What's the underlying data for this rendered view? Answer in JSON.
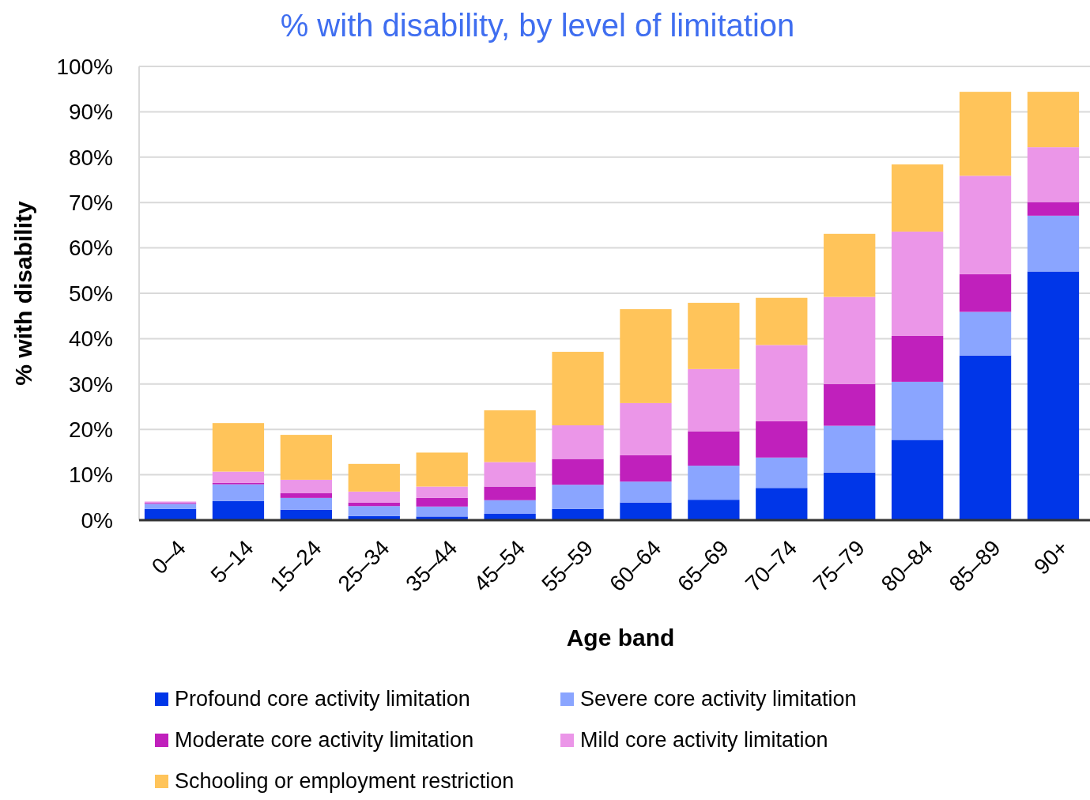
{
  "chart_data": {
    "type": "bar",
    "stacked": true,
    "title": "% with disability, by level of limitation",
    "xlabel": "Age band",
    "ylabel": "% with disability",
    "categories": [
      "0–4",
      "5–14",
      "15–24",
      "25–34",
      "35–44",
      "45–54",
      "55–59",
      "60–64",
      "65–69",
      "70–74",
      "75–79",
      "80–84",
      "85–89",
      "90+"
    ],
    "series": [
      {
        "name": "Profound core activity limitation",
        "color": "#0036e8",
        "values": [
          2.5,
          4.2,
          2.3,
          0.9,
          0.8,
          1.4,
          2.5,
          3.9,
          4.5,
          7.1,
          10.5,
          17.7,
          36.3,
          54.8
        ]
      },
      {
        "name": "Severe core activity limitation",
        "color": "#8aa5ff",
        "values": [
          1.1,
          3.7,
          2.6,
          2.2,
          2.2,
          3.0,
          5.3,
          4.6,
          7.5,
          6.7,
          10.3,
          12.8,
          9.6,
          12.3
        ]
      },
      {
        "name": "Moderate core activity limitation",
        "color": "#c020bc",
        "values": [
          0.2,
          0.3,
          1.1,
          0.8,
          1.9,
          3.0,
          5.7,
          5.8,
          7.6,
          8.0,
          9.2,
          10.1,
          8.3,
          3.0
        ]
      },
      {
        "name": "Mild core activity limitation",
        "color": "#eb96e8",
        "values": [
          0.3,
          2.5,
          2.9,
          2.4,
          2.5,
          5.4,
          7.4,
          11.5,
          13.7,
          16.8,
          19.2,
          23.0,
          21.7,
          12.1
        ]
      },
      {
        "name": "Schooling or employment restriction",
        "color": "#ffc45a",
        "values": [
          0,
          10.7,
          9.9,
          6.1,
          7.5,
          11.4,
          16.2,
          20.7,
          14.6,
          10.4,
          13.9,
          14.8,
          18.5,
          12.2
        ]
      }
    ],
    "ylim": [
      0,
      100
    ],
    "yticks": [
      {
        "value": 0,
        "label": "0%"
      },
      {
        "value": 10,
        "label": "10%"
      },
      {
        "value": 20,
        "label": "20%"
      },
      {
        "value": 30,
        "label": "30%"
      },
      {
        "value": 40,
        "label": "40%"
      },
      {
        "value": 50,
        "label": "50%"
      },
      {
        "value": 60,
        "label": "60%"
      },
      {
        "value": 70,
        "label": "70%"
      },
      {
        "value": 80,
        "label": "80%"
      },
      {
        "value": 90,
        "label": "90%"
      },
      {
        "value": 100,
        "label": "100%"
      }
    ],
    "grid": "y",
    "legend": "bottom"
  }
}
